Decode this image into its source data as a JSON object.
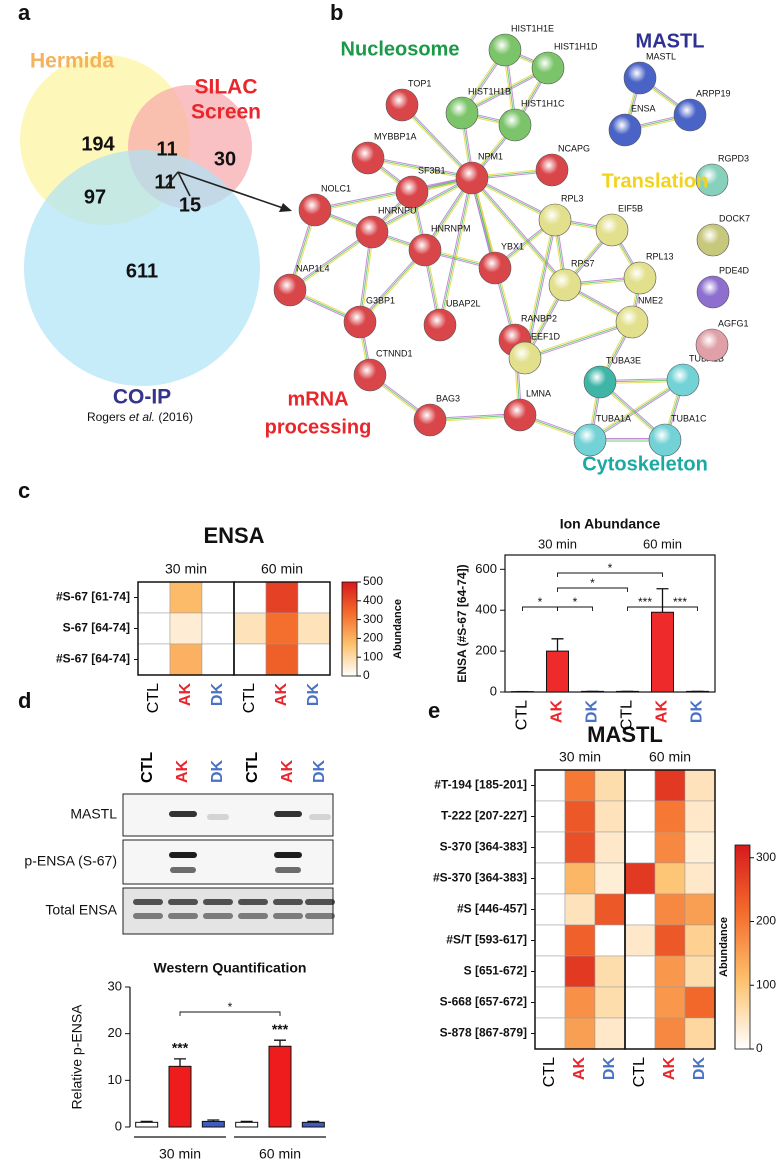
{
  "panel_labels": [
    "a",
    "b",
    "c",
    "d",
    "e"
  ],
  "venn": {
    "sets": [
      {
        "name_lines": [
          "Hermida"
        ],
        "color": "#fdf39c",
        "label_color": "#f5b25c"
      },
      {
        "name_lines": [
          "SILAC",
          "Screen"
        ],
        "color": "#f7a6ab",
        "label_color": "#e8262b"
      },
      {
        "name_lines": [
          "CO-IP"
        ],
        "color": "#aee2f7",
        "label_color": "#34348a"
      }
    ],
    "counts": [
      194,
      11,
      30,
      97,
      11,
      15,
      611
    ],
    "citation": [
      "Rogers ",
      "et al.",
      " (2016)"
    ]
  },
  "network": {
    "groups": [
      {
        "name_lines": [
          "Nucleosome"
        ],
        "color": "#1a9a48"
      },
      {
        "name_lines": [
          "MASTL"
        ],
        "color": "#2e3192"
      },
      {
        "name_lines": [
          "Translation"
        ],
        "color": "#f2d31b"
      },
      {
        "name_lines": [
          "mRNA",
          "processing"
        ],
        "color": "#e8262b"
      },
      {
        "name_lines": [
          "Cytoskeleton"
        ],
        "color": "#1aa9a3"
      }
    ],
    "nodes": [
      {
        "label": "HIST1H1E",
        "color": "#7cc46a"
      },
      {
        "label": "HIST1H1D",
        "color": "#7cc46a"
      },
      {
        "label": "HIST1H1B",
        "color": "#7cc46a"
      },
      {
        "label": "HIST1H1C",
        "color": "#7cc46a"
      },
      {
        "label": "MASTL",
        "color": "#4a63c7"
      },
      {
        "label": "ENSA",
        "color": "#4a63c7"
      },
      {
        "label": "ARPP19",
        "color": "#4a63c7"
      },
      {
        "label": "TOP1",
        "color": "#d9464a"
      },
      {
        "label": "MYBBP1A",
        "color": "#d9464a"
      },
      {
        "label": "NOLC1",
        "color": "#d9464a"
      },
      {
        "label": "SF3B1",
        "color": "#d9464a"
      },
      {
        "label": "NPM1",
        "color": "#d9464a"
      },
      {
        "label": "NCAPG",
        "color": "#d9464a"
      },
      {
        "label": "HNRNPU",
        "color": "#d9464a"
      },
      {
        "label": "NAP1L4",
        "color": "#d9464a"
      },
      {
        "label": "HNRNPM",
        "color": "#d9464a"
      },
      {
        "label": "YBX1",
        "color": "#d9464a"
      },
      {
        "label": "G3BP1",
        "color": "#d9464a"
      },
      {
        "label": "UBAP2L",
        "color": "#d9464a"
      },
      {
        "label": "RANBP2",
        "color": "#d9464a"
      },
      {
        "label": "CTNND1",
        "color": "#d9464a"
      },
      {
        "label": "BAG3",
        "color": "#d9464a"
      },
      {
        "label": "LMNA",
        "color": "#d9464a"
      },
      {
        "label": "RPL3",
        "color": "#e2e08c"
      },
      {
        "label": "EIF5B",
        "color": "#e2e08c"
      },
      {
        "label": "RPS7",
        "color": "#e2e08c"
      },
      {
        "label": "RPL13",
        "color": "#e2e08c"
      },
      {
        "label": "NME2",
        "color": "#e2e08c"
      },
      {
        "label": "EEF1D",
        "color": "#e2e08c"
      },
      {
        "label": "TUBA3E",
        "color": "#3fb5a8"
      },
      {
        "label": "TUBA1B",
        "color": "#72d2d6"
      },
      {
        "label": "TUBA1A",
        "color": "#72d2d6"
      },
      {
        "label": "TUBA1C",
        "color": "#72d2d6"
      },
      {
        "label": "RGPD3",
        "color": "#86d0bc"
      },
      {
        "label": "DOCK7",
        "color": "#c8c87c"
      },
      {
        "label": "PDE4D",
        "color": "#8e6fd0"
      },
      {
        "label": "AGFG1",
        "color": "#e0a0a8"
      }
    ]
  },
  "blot": {
    "lanes": [
      "CTL",
      "AK",
      "DK",
      "CTL",
      "AK",
      "DK"
    ],
    "lane_colors": [
      "#000000",
      "#e8262b",
      "#4a72c4",
      "#000000",
      "#e8262b",
      "#4a72c4"
    ],
    "rows": [
      "MASTL",
      "p-ENSA (S-67)",
      "Total ENSA"
    ]
  },
  "chart_data": [
    {
      "type": "heatmap",
      "title": "ENSA",
      "column_groups": [
        "30 min",
        "60 min"
      ],
      "x": [
        "CTL",
        "AK",
        "DK",
        "CTL",
        "AK",
        "DK"
      ],
      "category_colors": [
        "#000000",
        "#e8262b",
        "#4a72c4",
        "#000000",
        "#e8262b",
        "#4a72c4"
      ],
      "y": [
        "#S-67 [61-74]",
        "S-67 [64-74]",
        "#S-67 [64-74]"
      ],
      "values": [
        [
          0,
          180,
          0,
          0,
          420,
          0
        ],
        [
          0,
          50,
          0,
          80,
          330,
          80
        ],
        [
          0,
          200,
          0,
          0,
          360,
          0
        ]
      ],
      "zlim": [
        0,
        500
      ],
      "zticks": [
        0,
        100,
        200,
        300,
        400,
        500
      ],
      "colorbar_label": "Abundance",
      "colormap": [
        "#ffffff",
        "#fdc26e",
        "#f46d2c",
        "#d7191c"
      ]
    },
    {
      "type": "bar",
      "title": "Ion Abundance",
      "ylabel": "ENSA (#S-67 [64-74])",
      "column_groups": [
        "30 min",
        "60 min"
      ],
      "categories": [
        "CTL",
        "AK",
        "DK",
        "CTL",
        "AK",
        "DK"
      ],
      "category_colors": [
        "#000000",
        "#e8262b",
        "#4a72c4",
        "#000000",
        "#e8262b",
        "#4a72c4"
      ],
      "values": [
        2,
        200,
        3,
        3,
        390,
        3
      ],
      "errors": [
        0,
        60,
        0,
        0,
        115,
        0
      ],
      "bar_colors": [
        "#ffffff",
        "#ee2a2a",
        "#3e5bbd",
        "#ffffff",
        "#ee2a2a",
        "#3e5bbd"
      ],
      "ylim": [
        0,
        670
      ],
      "yticks": [
        0,
        200,
        400,
        600
      ],
      "significance": [
        "*",
        "*",
        "*",
        "*",
        "***",
        "***"
      ]
    },
    {
      "type": "bar",
      "title": "Western Quantification",
      "ylabel": "Relative p-ENSA",
      "column_groups": [
        "30 min",
        "60 min"
      ],
      "categories": [
        "CTL",
        "AK",
        "DK",
        "CTL",
        "AK",
        "DK"
      ],
      "values": [
        1,
        13,
        1.2,
        1,
        17.3,
        1
      ],
      "errors": [
        0.2,
        1.6,
        0.3,
        0.2,
        1.3,
        0.2
      ],
      "bar_colors": [
        "#ffffff",
        "#ee1c1c",
        "#3e5bbd",
        "#ffffff",
        "#ee1c1c",
        "#3e5bbd"
      ],
      "ylim": [
        0,
        30
      ],
      "yticks": [
        0,
        10,
        20,
        30
      ],
      "significance": [
        "***",
        "***",
        "*"
      ]
    },
    {
      "type": "heatmap",
      "title": "MASTL",
      "column_groups": [
        "30 min",
        "60 min"
      ],
      "x": [
        "CTL",
        "AK",
        "DK",
        "CTL",
        "AK",
        "DK"
      ],
      "category_colors": [
        "#000000",
        "#e8262b",
        "#4a72c4",
        "#000000",
        "#e8262b",
        "#4a72c4"
      ],
      "y": [
        "#T-194 [185-201]",
        "T-222 [207-227]",
        "S-370 [364-383]",
        "#S-370 [364-383]",
        "#S [446-457]",
        "#S/T [593-617]",
        "S [651-672]",
        "S-668 [657-672]",
        "S-878 [867-879]"
      ],
      "values": [
        [
          0,
          200,
          60,
          0,
          280,
          50
        ],
        [
          0,
          240,
          50,
          0,
          200,
          40
        ],
        [
          0,
          250,
          40,
          0,
          180,
          30
        ],
        [
          0,
          120,
          30,
          280,
          100,
          40
        ],
        [
          0,
          50,
          240,
          0,
          180,
          150
        ],
        [
          0,
          230,
          0,
          40,
          240,
          80
        ],
        [
          0,
          280,
          60,
          0,
          160,
          60
        ],
        [
          0,
          170,
          60,
          0,
          160,
          220
        ],
        [
          0,
          150,
          40,
          0,
          180,
          70
        ]
      ],
      "zlim": [
        0,
        320
      ],
      "zticks": [
        0,
        100,
        200,
        300
      ],
      "colorbar_label": "Abundance",
      "colormap": [
        "#ffffff",
        "#fdc26e",
        "#f46d2c",
        "#d7191c"
      ]
    }
  ]
}
